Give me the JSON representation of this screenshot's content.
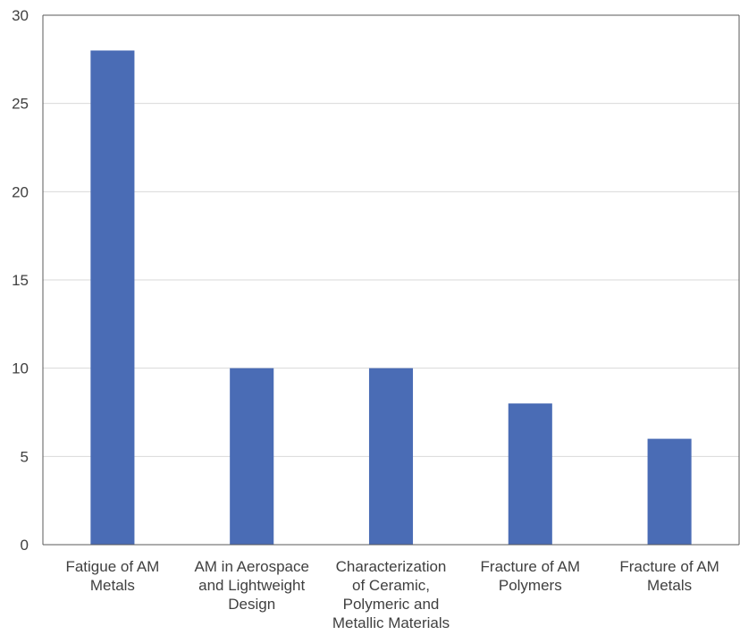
{
  "chart_data": {
    "type": "bar",
    "categories": [
      [
        "Fatigue of AM",
        "Metals"
      ],
      [
        "AM in Aerospace",
        "and Lightweight",
        "Design"
      ],
      [
        "Characterization",
        "of Ceramic,",
        "Polymeric and",
        "Metallic Materials"
      ],
      [
        "Fracture of AM",
        "Polymers"
      ],
      [
        "Fracture of AM",
        "Metals"
      ]
    ],
    "values": [
      28,
      10,
      10,
      8,
      6
    ],
    "title": "",
    "xlabel": "",
    "ylabel": "",
    "ylim": [
      0,
      30
    ],
    "yticks": [
      0,
      5,
      10,
      15,
      20,
      25,
      30
    ],
    "grid": true,
    "legend": "none",
    "bar_color": "#4a6cb5"
  }
}
